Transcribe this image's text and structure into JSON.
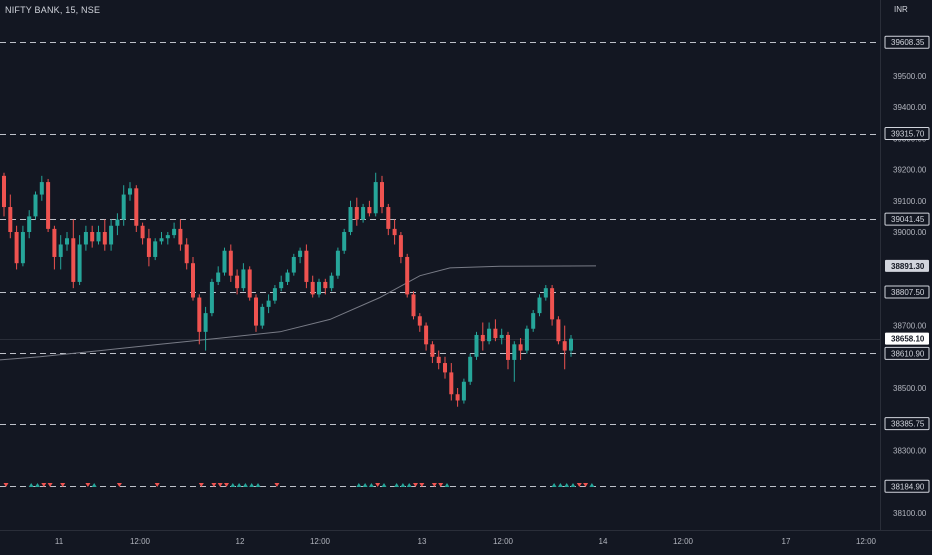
{
  "header": {
    "symbol": "NIFTY BANK, 15, NSE",
    "currency": "INR"
  },
  "colors": {
    "background": "#131722",
    "up": "#26a69a",
    "down": "#ef5350",
    "level_line": "#d1d4dc",
    "moving_average": "#787b86",
    "axis_text": "#b2b5be",
    "last_price_bg": "#ffffff"
  },
  "chart_data": {
    "type": "candlestick",
    "price_ticks": [
      "39500.00",
      "39400.00",
      "39300.00",
      "39200.00",
      "39100.00",
      "39000.00",
      "38800.00",
      "38700.00",
      "38500.00",
      "38300.00",
      "38100.00"
    ],
    "horizontal_levels": [
      {
        "price": 39608.35,
        "label": "39608.35"
      },
      {
        "price": 39315.7,
        "label": "39315.70"
      },
      {
        "price": 39041.45,
        "label": "39041.45"
      },
      {
        "price": 38807.5,
        "label": "38807.50"
      },
      {
        "price": 38610.9,
        "label": "38610.90"
      },
      {
        "price": 38385.75,
        "label": "38385.75"
      },
      {
        "price": 38184.9,
        "label": "38184.90"
      }
    ],
    "price_markers": [
      {
        "price": 38891.3,
        "label": "38891.30",
        "style": "gray"
      },
      {
        "price": 38658.1,
        "label": "38658.10",
        "style": "last"
      }
    ],
    "x_ticks": [
      "11",
      "12:00",
      "12",
      "12:00",
      "13",
      "12:00",
      "14",
      "12:00",
      "17",
      "12:00"
    ],
    "candles": [
      [
        39180,
        39190,
        39050,
        39080
      ],
      [
        39080,
        39120,
        38980,
        39000
      ],
      [
        39000,
        39020,
        38880,
        38900
      ],
      [
        38900,
        39020,
        38890,
        39000
      ],
      [
        39000,
        39070,
        38980,
        39050
      ],
      [
        39050,
        39130,
        39040,
        39120
      ],
      [
        39120,
        39180,
        39100,
        39160
      ],
      [
        39160,
        39170,
        39000,
        39010
      ],
      [
        39010,
        39020,
        38880,
        38920
      ],
      [
        38920,
        38990,
        38880,
        38960
      ],
      [
        38960,
        39000,
        38940,
        38980
      ],
      [
        38980,
        39040,
        38820,
        38840
      ],
      [
        38840,
        38990,
        38830,
        38960
      ],
      [
        38960,
        39020,
        38940,
        39000
      ],
      [
        39000,
        39020,
        38950,
        38970
      ],
      [
        38970,
        39020,
        38960,
        39000
      ],
      [
        39000,
        39040,
        38940,
        38960
      ],
      [
        38960,
        39040,
        38940,
        39020
      ],
      [
        39020,
        39060,
        38990,
        39040
      ],
      [
        39040,
        39150,
        39020,
        39120
      ],
      [
        39120,
        39160,
        39100,
        39140
      ],
      [
        39140,
        39150,
        39000,
        39020
      ],
      [
        39020,
        39030,
        38960,
        38980
      ],
      [
        38980,
        39010,
        38890,
        38920
      ],
      [
        38920,
        38980,
        38910,
        38970
      ],
      [
        38970,
        39000,
        38960,
        38980
      ],
      [
        38980,
        39000,
        38960,
        38990
      ],
      [
        38990,
        39030,
        38980,
        39010
      ],
      [
        39010,
        39040,
        38940,
        38960
      ],
      [
        38960,
        38980,
        38880,
        38900
      ],
      [
        38900,
        38920,
        38780,
        38790
      ],
      [
        38790,
        38800,
        38640,
        38680
      ],
      [
        38680,
        38760,
        38620,
        38740
      ],
      [
        38740,
        38850,
        38730,
        38840
      ],
      [
        38840,
        38890,
        38830,
        38870
      ],
      [
        38870,
        38950,
        38860,
        38940
      ],
      [
        38940,
        38960,
        38840,
        38860
      ],
      [
        38860,
        38880,
        38800,
        38820
      ],
      [
        38820,
        38900,
        38810,
        38880
      ],
      [
        38880,
        38890,
        38780,
        38790
      ],
      [
        38790,
        38800,
        38680,
        38700
      ],
      [
        38700,
        38770,
        38690,
        38760
      ],
      [
        38760,
        38800,
        38740,
        38780
      ],
      [
        38780,
        38830,
        38770,
        38820
      ],
      [
        38820,
        38860,
        38810,
        38840
      ],
      [
        38840,
        38880,
        38830,
        38870
      ],
      [
        38870,
        38930,
        38860,
        38920
      ],
      [
        38920,
        38950,
        38900,
        38940
      ],
      [
        38940,
        38960,
        38820,
        38840
      ],
      [
        38840,
        38860,
        38790,
        38800
      ],
      [
        38800,
        38850,
        38790,
        38840
      ],
      [
        38840,
        38850,
        38800,
        38820
      ],
      [
        38820,
        38870,
        38810,
        38860
      ],
      [
        38860,
        38950,
        38850,
        38940
      ],
      [
        38940,
        39010,
        38930,
        39000
      ],
      [
        39000,
        39100,
        38990,
        39080
      ],
      [
        39080,
        39110,
        39020,
        39040
      ],
      [
        39040,
        39090,
        39030,
        39080
      ],
      [
        39080,
        39100,
        39050,
        39060
      ],
      [
        39060,
        39190,
        39050,
        39160
      ],
      [
        39160,
        39180,
        39060,
        39080
      ],
      [
        39080,
        39090,
        38990,
        39010
      ],
      [
        39010,
        39040,
        38960,
        38990
      ],
      [
        38990,
        39000,
        38900,
        38920
      ],
      [
        38920,
        38930,
        38790,
        38800
      ],
      [
        38800,
        38810,
        38720,
        38730
      ],
      [
        38730,
        38740,
        38680,
        38700
      ],
      [
        38700,
        38710,
        38620,
        38640
      ],
      [
        38640,
        38650,
        38580,
        38600
      ],
      [
        38600,
        38620,
        38560,
        38580
      ],
      [
        38580,
        38600,
        38530,
        38550
      ],
      [
        38550,
        38580,
        38460,
        38480
      ],
      [
        38480,
        38500,
        38440,
        38460
      ],
      [
        38460,
        38530,
        38450,
        38520
      ],
      [
        38520,
        38610,
        38510,
        38600
      ],
      [
        38600,
        38680,
        38590,
        38670
      ],
      [
        38670,
        38710,
        38620,
        38650
      ],
      [
        38650,
        38710,
        38640,
        38690
      ],
      [
        38690,
        38720,
        38650,
        38660
      ],
      [
        38660,
        38690,
        38640,
        38670
      ],
      [
        38670,
        38680,
        38560,
        38590
      ],
      [
        38590,
        38650,
        38520,
        38640
      ],
      [
        38640,
        38660,
        38590,
        38620
      ],
      [
        38620,
        38700,
        38610,
        38690
      ],
      [
        38690,
        38750,
        38680,
        38740
      ],
      [
        38740,
        38800,
        38730,
        38790
      ],
      [
        38790,
        38830,
        38780,
        38820
      ],
      [
        38820,
        38830,
        38700,
        38720
      ],
      [
        38720,
        38730,
        38640,
        38650
      ],
      [
        38650,
        38700,
        38560,
        38620
      ],
      [
        38620,
        38670,
        38600,
        38658
      ]
    ],
    "moving_average": [
      [
        0,
        38590
      ],
      [
        40,
        38600
      ],
      [
        100,
        38620
      ],
      [
        160,
        38640
      ],
      [
        220,
        38660
      ],
      [
        280,
        38680
      ],
      [
        330,
        38720
      ],
      [
        380,
        38790
      ],
      [
        420,
        38860
      ],
      [
        450,
        38885
      ],
      [
        500,
        38890
      ],
      [
        596,
        38891.3
      ]
    ],
    "signal_markers": [
      {
        "slot": 0,
        "dir": "down"
      },
      {
        "slot": 4,
        "dir": "up"
      },
      {
        "slot": 5,
        "dir": "up"
      },
      {
        "slot": 6,
        "dir": "down"
      },
      {
        "slot": 7,
        "dir": "down"
      },
      {
        "slot": 9,
        "dir": "down"
      },
      {
        "slot": 13,
        "dir": "down"
      },
      {
        "slot": 14,
        "dir": "up"
      },
      {
        "slot": 18,
        "dir": "down"
      },
      {
        "slot": 24,
        "dir": "down"
      },
      {
        "slot": 31,
        "dir": "down"
      },
      {
        "slot": 33,
        "dir": "down"
      },
      {
        "slot": 34,
        "dir": "down"
      },
      {
        "slot": 35,
        "dir": "down"
      },
      {
        "slot": 36,
        "dir": "up"
      },
      {
        "slot": 37,
        "dir": "up"
      },
      {
        "slot": 38,
        "dir": "up"
      },
      {
        "slot": 39,
        "dir": "up"
      },
      {
        "slot": 40,
        "dir": "up"
      },
      {
        "slot": 43,
        "dir": "down"
      },
      {
        "slot": 56,
        "dir": "up"
      },
      {
        "slot": 57,
        "dir": "up"
      },
      {
        "slot": 58,
        "dir": "up"
      },
      {
        "slot": 59,
        "dir": "down"
      },
      {
        "slot": 60,
        "dir": "up"
      },
      {
        "slot": 62,
        "dir": "up"
      },
      {
        "slot": 63,
        "dir": "up"
      },
      {
        "slot": 64,
        "dir": "up"
      },
      {
        "slot": 65,
        "dir": "down"
      },
      {
        "slot": 66,
        "dir": "down"
      },
      {
        "slot": 68,
        "dir": "down"
      },
      {
        "slot": 69,
        "dir": "down"
      },
      {
        "slot": 70,
        "dir": "up"
      },
      {
        "slot": 87,
        "dir": "up"
      },
      {
        "slot": 88,
        "dir": "up"
      },
      {
        "slot": 89,
        "dir": "up"
      },
      {
        "slot": 90,
        "dir": "up"
      },
      {
        "slot": 91,
        "dir": "down"
      },
      {
        "slot": 92,
        "dir": "down"
      },
      {
        "slot": 93,
        "dir": "up"
      }
    ]
  }
}
